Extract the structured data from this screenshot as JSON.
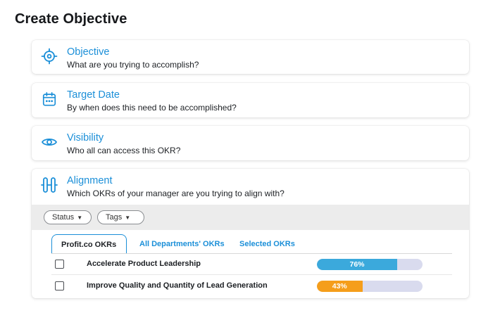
{
  "page": {
    "title": "Create Objective"
  },
  "sections": [
    {
      "title": "Objective",
      "subtitle": "What are you trying to accomplish?",
      "icon": "target-icon"
    },
    {
      "title": "Target Date",
      "subtitle": "By when does this need to be accomplished?",
      "icon": "calendar-icon"
    },
    {
      "title": "Visibility",
      "subtitle": "Who all can access this OKR?",
      "icon": "eye-icon"
    },
    {
      "title": "Alignment",
      "subtitle": "Which OKRs of your manager are you trying to align with?",
      "icon": "alignment-icon"
    }
  ],
  "filters": [
    {
      "label": "Status",
      "icon": "caret-down-icon"
    },
    {
      "label": "Tags",
      "icon": "caret-down-icon"
    }
  ],
  "tabs": [
    {
      "label": "Profit.co OKRs",
      "active": true
    },
    {
      "label": "All Departments' OKRs",
      "active": false
    },
    {
      "label": "Selected OKRs",
      "active": false
    }
  ],
  "okrs": [
    {
      "name": "Accelerate Product Leadership",
      "progress": 76,
      "progress_label": "76%",
      "checked": false,
      "color": "#3ba9dc"
    },
    {
      "name": "Improve Quality and Quantity of Lead Generation",
      "progress": 43,
      "progress_label": "43%",
      "checked": false,
      "color": "#f59e1b"
    }
  ],
  "colors": {
    "accent": "#1b8fd8",
    "track": "#d9dbee",
    "filter_bar": "#ececec"
  }
}
